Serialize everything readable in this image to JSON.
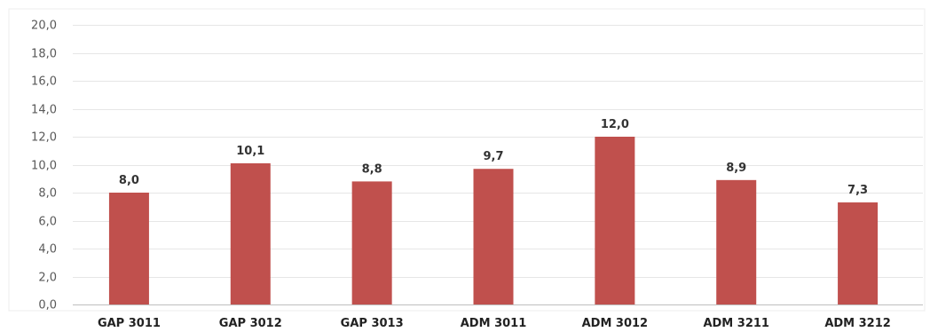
{
  "chart_data": {
    "type": "bar",
    "title": "",
    "xlabel": "",
    "ylabel": "",
    "categories": [
      "GAP 3011",
      "GAP 3012",
      "GAP 3013",
      "ADM 3011",
      "ADM 3012",
      "ADM 3211",
      "ADM 3212"
    ],
    "values": [
      8.0,
      10.1,
      8.8,
      9.7,
      12.0,
      8.9,
      7.3
    ],
    "data_labels": [
      "8,0",
      "10,1",
      "8,8",
      "9,7",
      "12,0",
      "8,9",
      "7,3"
    ],
    "ylim": [
      0,
      20
    ],
    "y_ticks": [
      0,
      2,
      4,
      6,
      8,
      10,
      12,
      14,
      16,
      18,
      20
    ],
    "y_tick_labels": [
      "0,0",
      "2,0",
      "4,0",
      "6,0",
      "8,0",
      "10,0",
      "12,0",
      "14,0",
      "16,0",
      "18,0",
      "20,0"
    ],
    "grid": true,
    "legend": "none",
    "bar_color": "#C0504D",
    "grid_color": "#E6E6E6"
  }
}
